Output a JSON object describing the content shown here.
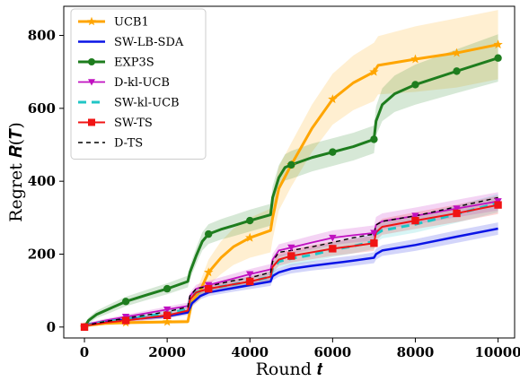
{
  "chart_data": {
    "type": "line",
    "xlabel": "Round 𝒕",
    "ylabel": "Regret 𝑹(𝑻)",
    "xlim": [
      -500,
      10400
    ],
    "ylim": [
      -30,
      880
    ],
    "xticks": [
      0,
      2000,
      4000,
      6000,
      8000,
      10000
    ],
    "yticks": [
      0,
      200,
      400,
      600,
      800
    ],
    "legend_position": "top-left",
    "grid": false,
    "series": [
      {
        "name": "UCB1",
        "color": "#FFA500",
        "marker": "star",
        "dash": "",
        "width": 3,
        "x": [
          0,
          100,
          500,
          1000,
          2000,
          2500,
          2600,
          2800,
          3000,
          3300,
          3600,
          4000,
          4500,
          4550,
          4700,
          5000,
          5500,
          6000,
          6500,
          7000,
          7100,
          8000,
          9000,
          10000
        ],
        "y": [
          0,
          5,
          10,
          12,
          14,
          15,
          70,
          100,
          150,
          190,
          220,
          245,
          265,
          300,
          380,
          445,
          545,
          625,
          670,
          700,
          718,
          735,
          752,
          775
        ],
        "band": [
          0,
          5,
          5,
          5,
          5,
          6,
          15,
          25,
          35,
          45,
          50,
          55,
          60,
          60,
          60,
          60,
          65,
          70,
          75,
          80,
          80,
          90,
          95,
          95
        ],
        "markers_x": [
          0,
          1000,
          2000,
          3000,
          4000,
          5000,
          6000,
          7000,
          8000,
          9000,
          10000
        ]
      },
      {
        "name": "SW-LB-SDA",
        "color": "#0A14E6",
        "marker": "none",
        "dash": "",
        "width": 2.5,
        "x": [
          0,
          100,
          500,
          1000,
          2000,
          2500,
          2600,
          2800,
          3000,
          3500,
          4000,
          4500,
          4550,
          4700,
          5000,
          5500,
          6000,
          6500,
          7000,
          7050,
          7200,
          8000,
          9000,
          10000
        ],
        "y": [
          0,
          8,
          15,
          20,
          30,
          40,
          65,
          85,
          95,
          105,
          115,
          125,
          140,
          150,
          160,
          168,
          175,
          182,
          190,
          200,
          210,
          225,
          248,
          270
        ],
        "band": [
          0,
          3,
          4,
          5,
          6,
          7,
          8,
          9,
          10,
          10,
          11,
          12,
          12,
          12,
          13,
          13,
          14,
          14,
          15,
          15,
          15,
          16,
          17,
          17
        ],
        "markers_x": []
      },
      {
        "name": "EXP3S",
        "color": "#1E7D1E",
        "marker": "circle",
        "dash": "",
        "width": 3,
        "x": [
          0,
          100,
          300,
          600,
          1000,
          1500,
          2000,
          2500,
          2550,
          2700,
          2850,
          3000,
          3300,
          3600,
          4000,
          4500,
          4550,
          4700,
          4850,
          5000,
          5500,
          6000,
          6500,
          7000,
          7050,
          7200,
          7500,
          8000,
          9000,
          10000
        ],
        "y": [
          0,
          18,
          35,
          50,
          70,
          88,
          105,
          125,
          150,
          195,
          235,
          255,
          268,
          278,
          292,
          308,
          355,
          410,
          438,
          445,
          465,
          480,
          495,
          515,
          565,
          610,
          640,
          665,
          702,
          738
        ],
        "band": [
          0,
          8,
          10,
          12,
          13,
          14,
          15,
          16,
          18,
          22,
          25,
          27,
          28,
          29,
          30,
          30,
          32,
          34,
          36,
          38,
          38,
          38,
          38,
          38,
          40,
          45,
          50,
          55,
          60,
          65
        ],
        "markers_x": [
          0,
          1000,
          2000,
          3000,
          4000,
          5000,
          6000,
          7000,
          8000,
          9000,
          10000
        ]
      },
      {
        "name": "D-kl-UCB",
        "color": "#C010C0",
        "marker": "triangle-down",
        "dash": "",
        "width": 1.8,
        "x": [
          0,
          100,
          500,
          1000,
          1500,
          2000,
          2500,
          2550,
          2700,
          3000,
          3500,
          4000,
          4500,
          4550,
          4700,
          5000,
          5500,
          6000,
          6500,
          7000,
          7050,
          7200,
          8000,
          9000,
          10000
        ],
        "y": [
          0,
          8,
          18,
          28,
          38,
          48,
          58,
          85,
          105,
          115,
          130,
          145,
          158,
          185,
          210,
          218,
          232,
          245,
          252,
          258,
          280,
          290,
          305,
          325,
          345
        ],
        "band": [
          0,
          4,
          5,
          6,
          7,
          8,
          9,
          10,
          11,
          12,
          13,
          14,
          15,
          16,
          17,
          18,
          19,
          20,
          20,
          21,
          22,
          22,
          23,
          24,
          25
        ],
        "markers_x": [
          0,
          1000,
          2000,
          3000,
          4000,
          5000,
          6000,
          7000,
          8000,
          9000,
          10000
        ]
      },
      {
        "name": "SW-kl-UCB",
        "color": "#1FC6C6",
        "marker": "none",
        "dash": "9,6",
        "width": 3,
        "x": [
          0,
          100,
          500,
          1000,
          1500,
          2000,
          2500,
          2550,
          2700,
          3000,
          3500,
          4000,
          4500,
          4550,
          4700,
          5000,
          5500,
          6000,
          6500,
          7000,
          7050,
          7200,
          8000,
          9000,
          10000
        ],
        "y": [
          0,
          6,
          14,
          22,
          30,
          38,
          48,
          75,
          95,
          105,
          115,
          125,
          138,
          160,
          180,
          188,
          198,
          212,
          222,
          235,
          255,
          265,
          282,
          310,
          340
        ],
        "band": [
          0,
          4,
          5,
          6,
          7,
          8,
          9,
          10,
          11,
          12,
          13,
          14,
          15,
          16,
          17,
          18,
          19,
          20,
          20,
          21,
          22,
          22,
          23,
          24,
          25
        ],
        "markers_x": []
      },
      {
        "name": "SW-TS",
        "color": "#F01414",
        "marker": "square",
        "dash": "",
        "width": 2,
        "x": [
          0,
          100,
          500,
          1000,
          1500,
          2000,
          2500,
          2550,
          2700,
          3000,
          3500,
          4000,
          4500,
          4550,
          4700,
          5000,
          5500,
          6000,
          6500,
          7000,
          7050,
          7200,
          8000,
          9000,
          10000
        ],
        "y": [
          0,
          5,
          12,
          18,
          25,
          32,
          45,
          75,
          95,
          105,
          115,
          125,
          138,
          165,
          185,
          195,
          205,
          215,
          222,
          230,
          260,
          275,
          292,
          312,
          335
        ],
        "band": [
          0,
          4,
          5,
          6,
          7,
          8,
          9,
          10,
          11,
          12,
          13,
          14,
          15,
          16,
          17,
          18,
          19,
          20,
          20,
          21,
          22,
          22,
          23,
          24,
          25
        ],
        "markers_x": [
          0,
          1000,
          2000,
          3000,
          4000,
          5000,
          6000,
          7000,
          8000,
          9000,
          10000
        ]
      },
      {
        "name": "D-TS",
        "color": "#000000",
        "marker": "none",
        "dash": "5,4",
        "width": 1.4,
        "x": [
          0,
          100,
          500,
          1000,
          1500,
          2000,
          2500,
          2550,
          2700,
          3000,
          3500,
          4000,
          4500,
          4550,
          4700,
          5000,
          5500,
          6000,
          6500,
          7000,
          7050,
          7200,
          8000,
          9000,
          10000
        ],
        "y": [
          0,
          6,
          15,
          24,
          33,
          42,
          55,
          85,
          105,
          112,
          125,
          135,
          150,
          180,
          205,
          210,
          220,
          232,
          245,
          255,
          280,
          290,
          305,
          330,
          355
        ],
        "band": [],
        "markers_x": []
      }
    ]
  }
}
